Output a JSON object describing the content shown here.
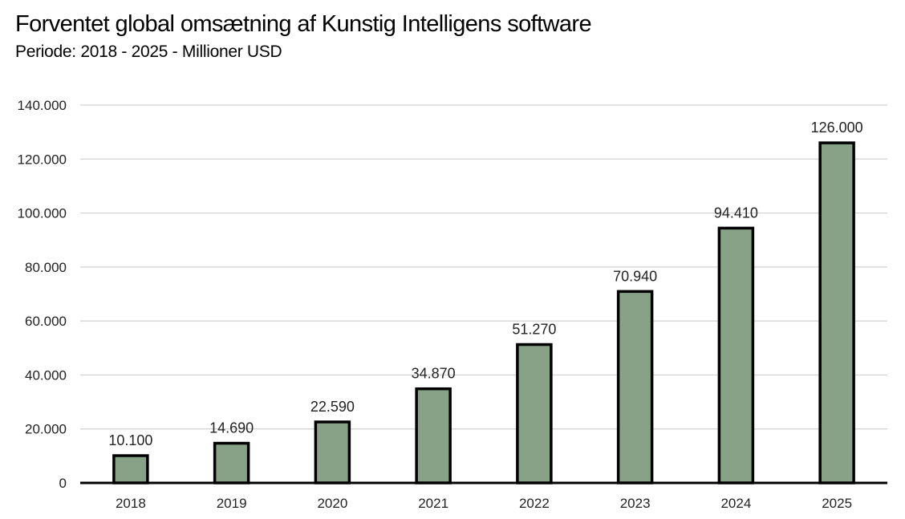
{
  "title": "Forventet global omsætning af Kunstig Intelligens software",
  "subtitle": "Periode: 2018 - 2025  -  Millioner USD",
  "colors": {
    "bar_fill": "#87a287",
    "bar_stroke": "#000000",
    "grid": "#d0d0d0",
    "axis": "#000000"
  },
  "chart_data": {
    "type": "bar",
    "title": "Forventet global omsætning af Kunstig Intelligens software",
    "subtitle": "Periode: 2018 - 2025  -  Millioner USD",
    "xlabel": "",
    "ylabel": "",
    "categories": [
      "2018",
      "2019",
      "2020",
      "2021",
      "2022",
      "2023",
      "2024",
      "2025"
    ],
    "values": [
      10100,
      14690,
      22590,
      34870,
      51270,
      70940,
      94410,
      126000
    ],
    "value_labels": [
      "10.100",
      "14.690",
      "22.590",
      "34.870",
      "51.270",
      "70.940",
      "94.410",
      "126.000"
    ],
    "ylim": [
      0,
      140000
    ],
    "yticks": [
      0,
      20000,
      40000,
      60000,
      80000,
      100000,
      120000,
      140000
    ],
    "ytick_labels": [
      "0",
      "20.000",
      "40.000",
      "60.000",
      "80.000",
      "100.000",
      "120.000",
      "140.000"
    ],
    "grid": true,
    "legend": "none"
  }
}
